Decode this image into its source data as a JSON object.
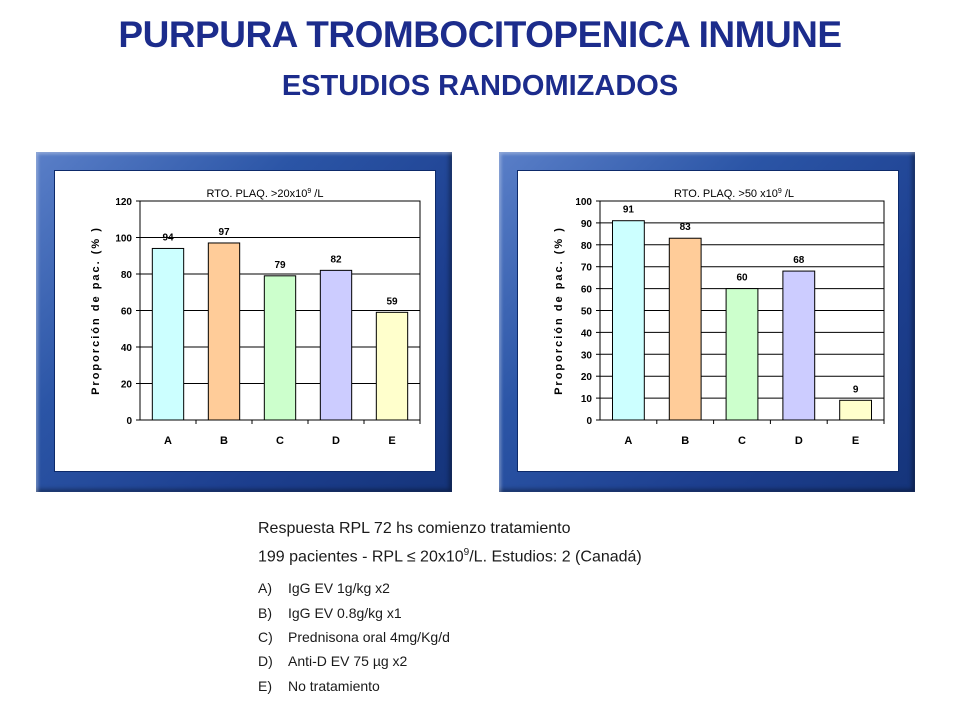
{
  "title": "PURPURA TROMBOCITOPENICA INMUNE",
  "subtitle": "ESTUDIOS RANDOMIZADOS",
  "chart_data": [
    {
      "type": "bar",
      "title": "RTO. PLAQ. >20x10",
      "title_sup": "9",
      "title_suffix": " /L",
      "ylabel": "Proporción de pac. (% )",
      "xlabel": "",
      "categories": [
        "A",
        "B",
        "C",
        "D",
        "E"
      ],
      "values": [
        94,
        97,
        79,
        82,
        59
      ],
      "data_labels": [
        "94",
        "97",
        "79",
        "82",
        "59"
      ],
      "ylim": [
        0,
        120
      ],
      "yticks": [
        0,
        20,
        40,
        60,
        80,
        100,
        120
      ],
      "ytick_labels": [
        "0",
        "20",
        "40",
        "60",
        "80",
        "100",
        "120"
      ],
      "colors": [
        "#ccffff",
        "#ffcc99",
        "#ccffcc",
        "#ccccff",
        "#ffffcc"
      ],
      "grid": true,
      "legend": "none"
    },
    {
      "type": "bar",
      "title": "RTO. PLAQ. >50 x10",
      "title_sup": "9",
      "title_suffix": " /L",
      "ylabel": "Proporción de pac. (% )",
      "xlabel": "",
      "categories": [
        "A",
        "B",
        "C",
        "D",
        "E"
      ],
      "values": [
        91,
        83,
        60,
        68,
        9
      ],
      "data_labels": [
        "91",
        "83",
        "60",
        "68",
        "9"
      ],
      "ylim": [
        0,
        100
      ],
      "yticks": [
        0,
        10,
        20,
        30,
        40,
        50,
        60,
        70,
        80,
        90,
        100
      ],
      "ytick_labels": [
        "0",
        "10",
        "20",
        "30",
        "40",
        "50",
        "60",
        "70",
        "80",
        "90",
        "100"
      ],
      "colors": [
        "#ccffff",
        "#ffcc99",
        "#ccffcc",
        "#ccccff",
        "#ffffcc"
      ],
      "grid": true,
      "legend": "none"
    }
  ],
  "caption": {
    "line1": "Respuesta RPL 72 hs comienzo tratamiento",
    "line2_pre": "199 pacientes - RPL ",
    "line2_le": "≤",
    "line2_mid": " 20x10",
    "line2_sup": "9",
    "line2_post": "/L. Estudios: 2 (Canadá)",
    "items": [
      {
        "letter": "A)",
        "text": "IgG EV 1g/kg x2"
      },
      {
        "letter": "B)",
        "text": "IgG EV 0.8g/kg x1"
      },
      {
        "letter": "C)",
        "text": "Prednisona oral 4mg/Kg/d"
      },
      {
        "letter": "D)",
        "text": "Anti-D EV 75 µg x2"
      },
      {
        "letter": "E)",
        "text": "No tratamiento"
      }
    ]
  }
}
